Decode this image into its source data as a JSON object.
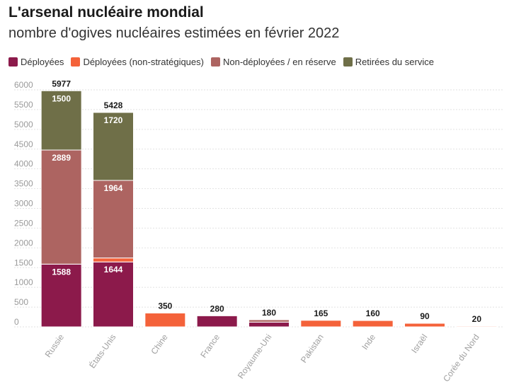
{
  "title": "L'arsenal nucléaire mondial",
  "subtitle": "nombre d'ogives nucléaires estimées en février 2022",
  "legend": [
    {
      "label": "Déployées",
      "color": "#8c1a4b"
    },
    {
      "label": "Déployées (non-stratégiques)",
      "color": "#f4623a"
    },
    {
      "label": "Non-déployées / en réserve",
      "color": "#ad6461"
    },
    {
      "label": "Retirées du service",
      "color": "#6f6f48"
    }
  ],
  "chart_data": {
    "type": "bar",
    "stacked": true,
    "categories": [
      "Russie",
      "États-Unis",
      "Chine",
      "France",
      "Royaume-Uni",
      "Pakistan",
      "Inde",
      "Israël",
      "Corée du Nord"
    ],
    "series": [
      {
        "name": "Déployées",
        "color": "#8c1a4b",
        "values": [
          1588,
          1644,
          0,
          280,
          120,
          0,
          0,
          0,
          0
        ]
      },
      {
        "name": "Déployées (non-stratégiques)",
        "color": "#f4623a",
        "values": [
          0,
          100,
          350,
          0,
          0,
          165,
          160,
          90,
          20
        ]
      },
      {
        "name": "Non-déployées / en réserve",
        "color": "#ad6461",
        "values": [
          2889,
          1964,
          0,
          0,
          60,
          0,
          0,
          0,
          0
        ]
      },
      {
        "name": "Retirées du service",
        "color": "#6f6f48",
        "values": [
          1500,
          1720,
          0,
          0,
          0,
          0,
          0,
          0,
          0
        ]
      }
    ],
    "totals": [
      5977,
      5428,
      350,
      280,
      180,
      165,
      160,
      90,
      20
    ],
    "segment_labels": [
      {
        "category": "Russie",
        "series": "Déployées",
        "text": "1588"
      },
      {
        "category": "Russie",
        "series": "Non-déployées / en réserve",
        "text": "2889"
      },
      {
        "category": "Russie",
        "series": "Retirées du service",
        "text": "1500"
      },
      {
        "category": "États-Unis",
        "series": "Déployées",
        "text": "1644"
      },
      {
        "category": "États-Unis",
        "series": "Non-déployées / en réserve",
        "text": "1964"
      },
      {
        "category": "États-Unis",
        "series": "Retirées du service",
        "text": "1720"
      }
    ],
    "y_ticks": [
      0,
      500,
      1000,
      1500,
      2000,
      2500,
      3000,
      3500,
      4000,
      4500,
      5000,
      5500,
      6000
    ],
    "ylim": [
      0,
      6000
    ],
    "grid": true,
    "legend_position": "top-left"
  }
}
